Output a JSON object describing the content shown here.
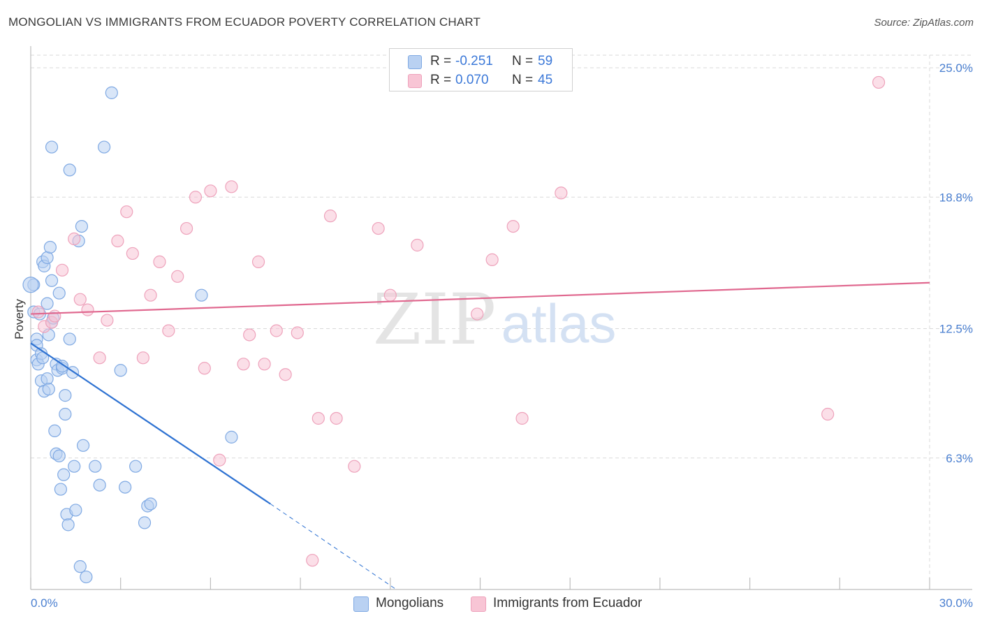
{
  "title": "MONGOLIAN VS IMMIGRANTS FROM ECUADOR POVERTY CORRELATION CHART",
  "source": "Source: ZipAtlas.com",
  "watermark": {
    "zip": "ZIP",
    "atlas": "atlas"
  },
  "colors": {
    "series1_fill": "#b9d1f2",
    "series1_stroke": "#7fa9e3",
    "series1_line": "#2e72d2",
    "series2_fill": "#f8c5d5",
    "series2_stroke": "#eea2bb",
    "series2_line": "#e0688f",
    "grid": "#d9d9d9",
    "axis_text": "#4a7fd0"
  },
  "legend_top": {
    "rows": [
      {
        "r_label": "R =",
        "r_value": "-0.251",
        "n_label": "N =",
        "n_value": "59"
      },
      {
        "r_label": "R =",
        "r_value": "0.070",
        "n_label": "N =",
        "n_value": "45"
      }
    ]
  },
  "legend_bottom": [
    "Mongolians",
    "Immigrants from Ecuador"
  ],
  "chart_data": {
    "type": "scatter",
    "title": "MONGOLIAN VS IMMIGRANTS FROM ECUADOR POVERTY CORRELATION CHART",
    "xlabel": "",
    "ylabel": "Poverty",
    "xlim": [
      0,
      30
    ],
    "ylim": [
      0,
      25
    ],
    "x_tick_labels": [
      "0.0%",
      "30.0%"
    ],
    "y_ticks": [
      6.3,
      12.5,
      18.8,
      25.0
    ],
    "y_tick_labels": [
      "6.3%",
      "12.5%",
      "18.8%",
      "25.0%"
    ],
    "grid": true,
    "legend_position": "top-center",
    "series": [
      {
        "name": "Mongolians",
        "R": -0.251,
        "N": 59,
        "trend": {
          "x0": 0,
          "y0": 11.8,
          "x1": 8.0,
          "y1": 4.1,
          "dash_to_x": 12.2,
          "dash_to_y": 0
        },
        "points": [
          [
            0.1,
            14.6
          ],
          [
            0.1,
            13.3
          ],
          [
            0.2,
            12.0
          ],
          [
            0.2,
            11.7
          ],
          [
            0.2,
            11.0
          ],
          [
            0.25,
            10.8
          ],
          [
            0.3,
            13.2
          ],
          [
            0.35,
            11.3
          ],
          [
            0.4,
            11.1
          ],
          [
            0.35,
            10.0
          ],
          [
            0.4,
            15.7
          ],
          [
            0.45,
            9.5
          ],
          [
            0.45,
            15.5
          ],
          [
            0.55,
            10.1
          ],
          [
            0.55,
            15.9
          ],
          [
            0.55,
            13.7
          ],
          [
            0.6,
            12.2
          ],
          [
            0.6,
            9.6
          ],
          [
            0.65,
            16.4
          ],
          [
            0.7,
            14.8
          ],
          [
            0.7,
            12.8
          ],
          [
            0.75,
            13.0
          ],
          [
            0.8,
            7.6
          ],
          [
            0.85,
            10.8
          ],
          [
            0.85,
            6.5
          ],
          [
            0.9,
            10.5
          ],
          [
            0.95,
            14.2
          ],
          [
            0.95,
            6.4
          ],
          [
            1.0,
            4.8
          ],
          [
            1.05,
            10.6
          ],
          [
            1.05,
            10.7
          ],
          [
            1.1,
            5.5
          ],
          [
            1.15,
            9.3
          ],
          [
            1.15,
            8.4
          ],
          [
            1.2,
            3.6
          ],
          [
            1.25,
            3.1
          ],
          [
            1.3,
            12.0
          ],
          [
            1.4,
            10.4
          ],
          [
            1.45,
            5.9
          ],
          [
            1.5,
            3.8
          ],
          [
            1.6,
            16.7
          ],
          [
            1.65,
            1.1
          ],
          [
            1.7,
            17.4
          ],
          [
            1.75,
            6.9
          ],
          [
            1.85,
            0.6
          ],
          [
            2.15,
            5.9
          ],
          [
            2.3,
            5.0
          ],
          [
            2.45,
            21.2
          ],
          [
            2.7,
            23.8
          ],
          [
            3.0,
            10.5
          ],
          [
            3.15,
            4.9
          ],
          [
            3.5,
            5.9
          ],
          [
            3.8,
            3.2
          ],
          [
            3.9,
            4.0
          ],
          [
            4.0,
            4.1
          ],
          [
            5.7,
            14.1
          ],
          [
            6.7,
            7.3
          ],
          [
            0.7,
            21.2
          ],
          [
            1.3,
            20.1
          ]
        ]
      },
      {
        "name": "Immigrants from Ecuador",
        "R": 0.07,
        "N": 45,
        "trend": {
          "x0": 0,
          "y0": 13.2,
          "x1": 30,
          "y1": 14.7
        },
        "points": [
          [
            0.25,
            13.3
          ],
          [
            0.45,
            12.6
          ],
          [
            0.7,
            12.8
          ],
          [
            0.8,
            13.1
          ],
          [
            1.05,
            15.3
          ],
          [
            1.45,
            16.8
          ],
          [
            1.65,
            13.9
          ],
          [
            1.9,
            13.4
          ],
          [
            2.3,
            11.1
          ],
          [
            2.55,
            12.9
          ],
          [
            2.9,
            16.7
          ],
          [
            3.2,
            18.1
          ],
          [
            3.4,
            16.1
          ],
          [
            3.75,
            11.1
          ],
          [
            4.0,
            14.1
          ],
          [
            4.3,
            15.7
          ],
          [
            4.6,
            12.4
          ],
          [
            4.9,
            15.0
          ],
          [
            5.2,
            17.3
          ],
          [
            5.5,
            18.8
          ],
          [
            5.8,
            10.6
          ],
          [
            6.0,
            19.1
          ],
          [
            6.3,
            6.2
          ],
          [
            6.7,
            19.3
          ],
          [
            7.1,
            10.8
          ],
          [
            7.3,
            12.2
          ],
          [
            7.6,
            15.7
          ],
          [
            7.8,
            10.8
          ],
          [
            8.2,
            12.4
          ],
          [
            8.5,
            10.3
          ],
          [
            8.9,
            12.3
          ],
          [
            9.4,
            1.4
          ],
          [
            9.6,
            8.2
          ],
          [
            10.0,
            17.9
          ],
          [
            10.2,
            8.2
          ],
          [
            10.8,
            5.9
          ],
          [
            11.6,
            17.3
          ],
          [
            12.0,
            14.1
          ],
          [
            12.9,
            16.5
          ],
          [
            14.9,
            13.2
          ],
          [
            15.4,
            15.8
          ],
          [
            16.1,
            17.4
          ],
          [
            16.4,
            8.2
          ],
          [
            17.7,
            19.0
          ],
          [
            28.3,
            24.3
          ]
        ]
      },
      {
        "name": "",
        "points": [
          [
            26.6,
            8.4
          ]
        ]
      }
    ]
  }
}
